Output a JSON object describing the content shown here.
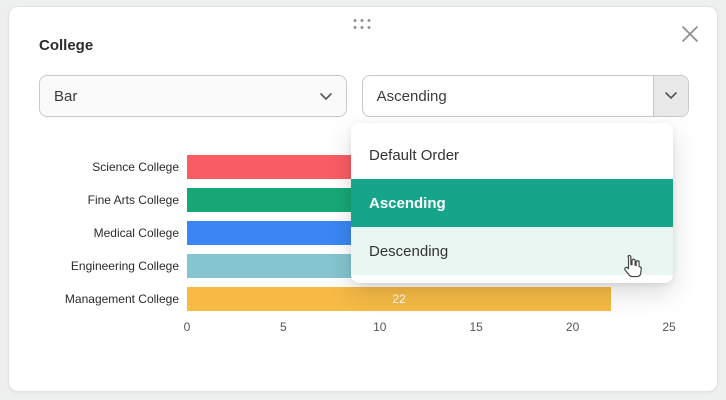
{
  "modal": {
    "title": "College"
  },
  "controls": {
    "chart_type_select": {
      "value": "Bar"
    },
    "sort_select": {
      "value": "Ascending"
    }
  },
  "dropdown_menu": {
    "items": [
      {
        "label": "Default Order",
        "state": "default"
      },
      {
        "label": "Ascending",
        "state": "selected"
      },
      {
        "label": "Descending",
        "state": "hover"
      }
    ]
  },
  "colors": {
    "accent_green": "#16a58a",
    "menu_hover": "#e9f6f1"
  },
  "chart_data": {
    "type": "bar",
    "orientation": "horizontal",
    "title": "College",
    "categories": [
      "Science College",
      "Fine Arts College",
      "Medical College",
      "Engineering College",
      "Management College"
    ],
    "values": [
      10,
      13,
      16,
      19,
      22
    ],
    "value_labels": [
      "",
      "",
      "",
      "",
      "22"
    ],
    "bar_colors": [
      "#f95d63",
      "#18a878",
      "#3a86f4",
      "#84c5cf",
      "#f6ba45"
    ],
    "xlim": [
      0,
      25
    ],
    "x_ticks": [
      0,
      5,
      10,
      15,
      20,
      25
    ],
    "xlabel": "",
    "ylabel": "",
    "grid": false,
    "legend": false,
    "sort": "ascending"
  }
}
